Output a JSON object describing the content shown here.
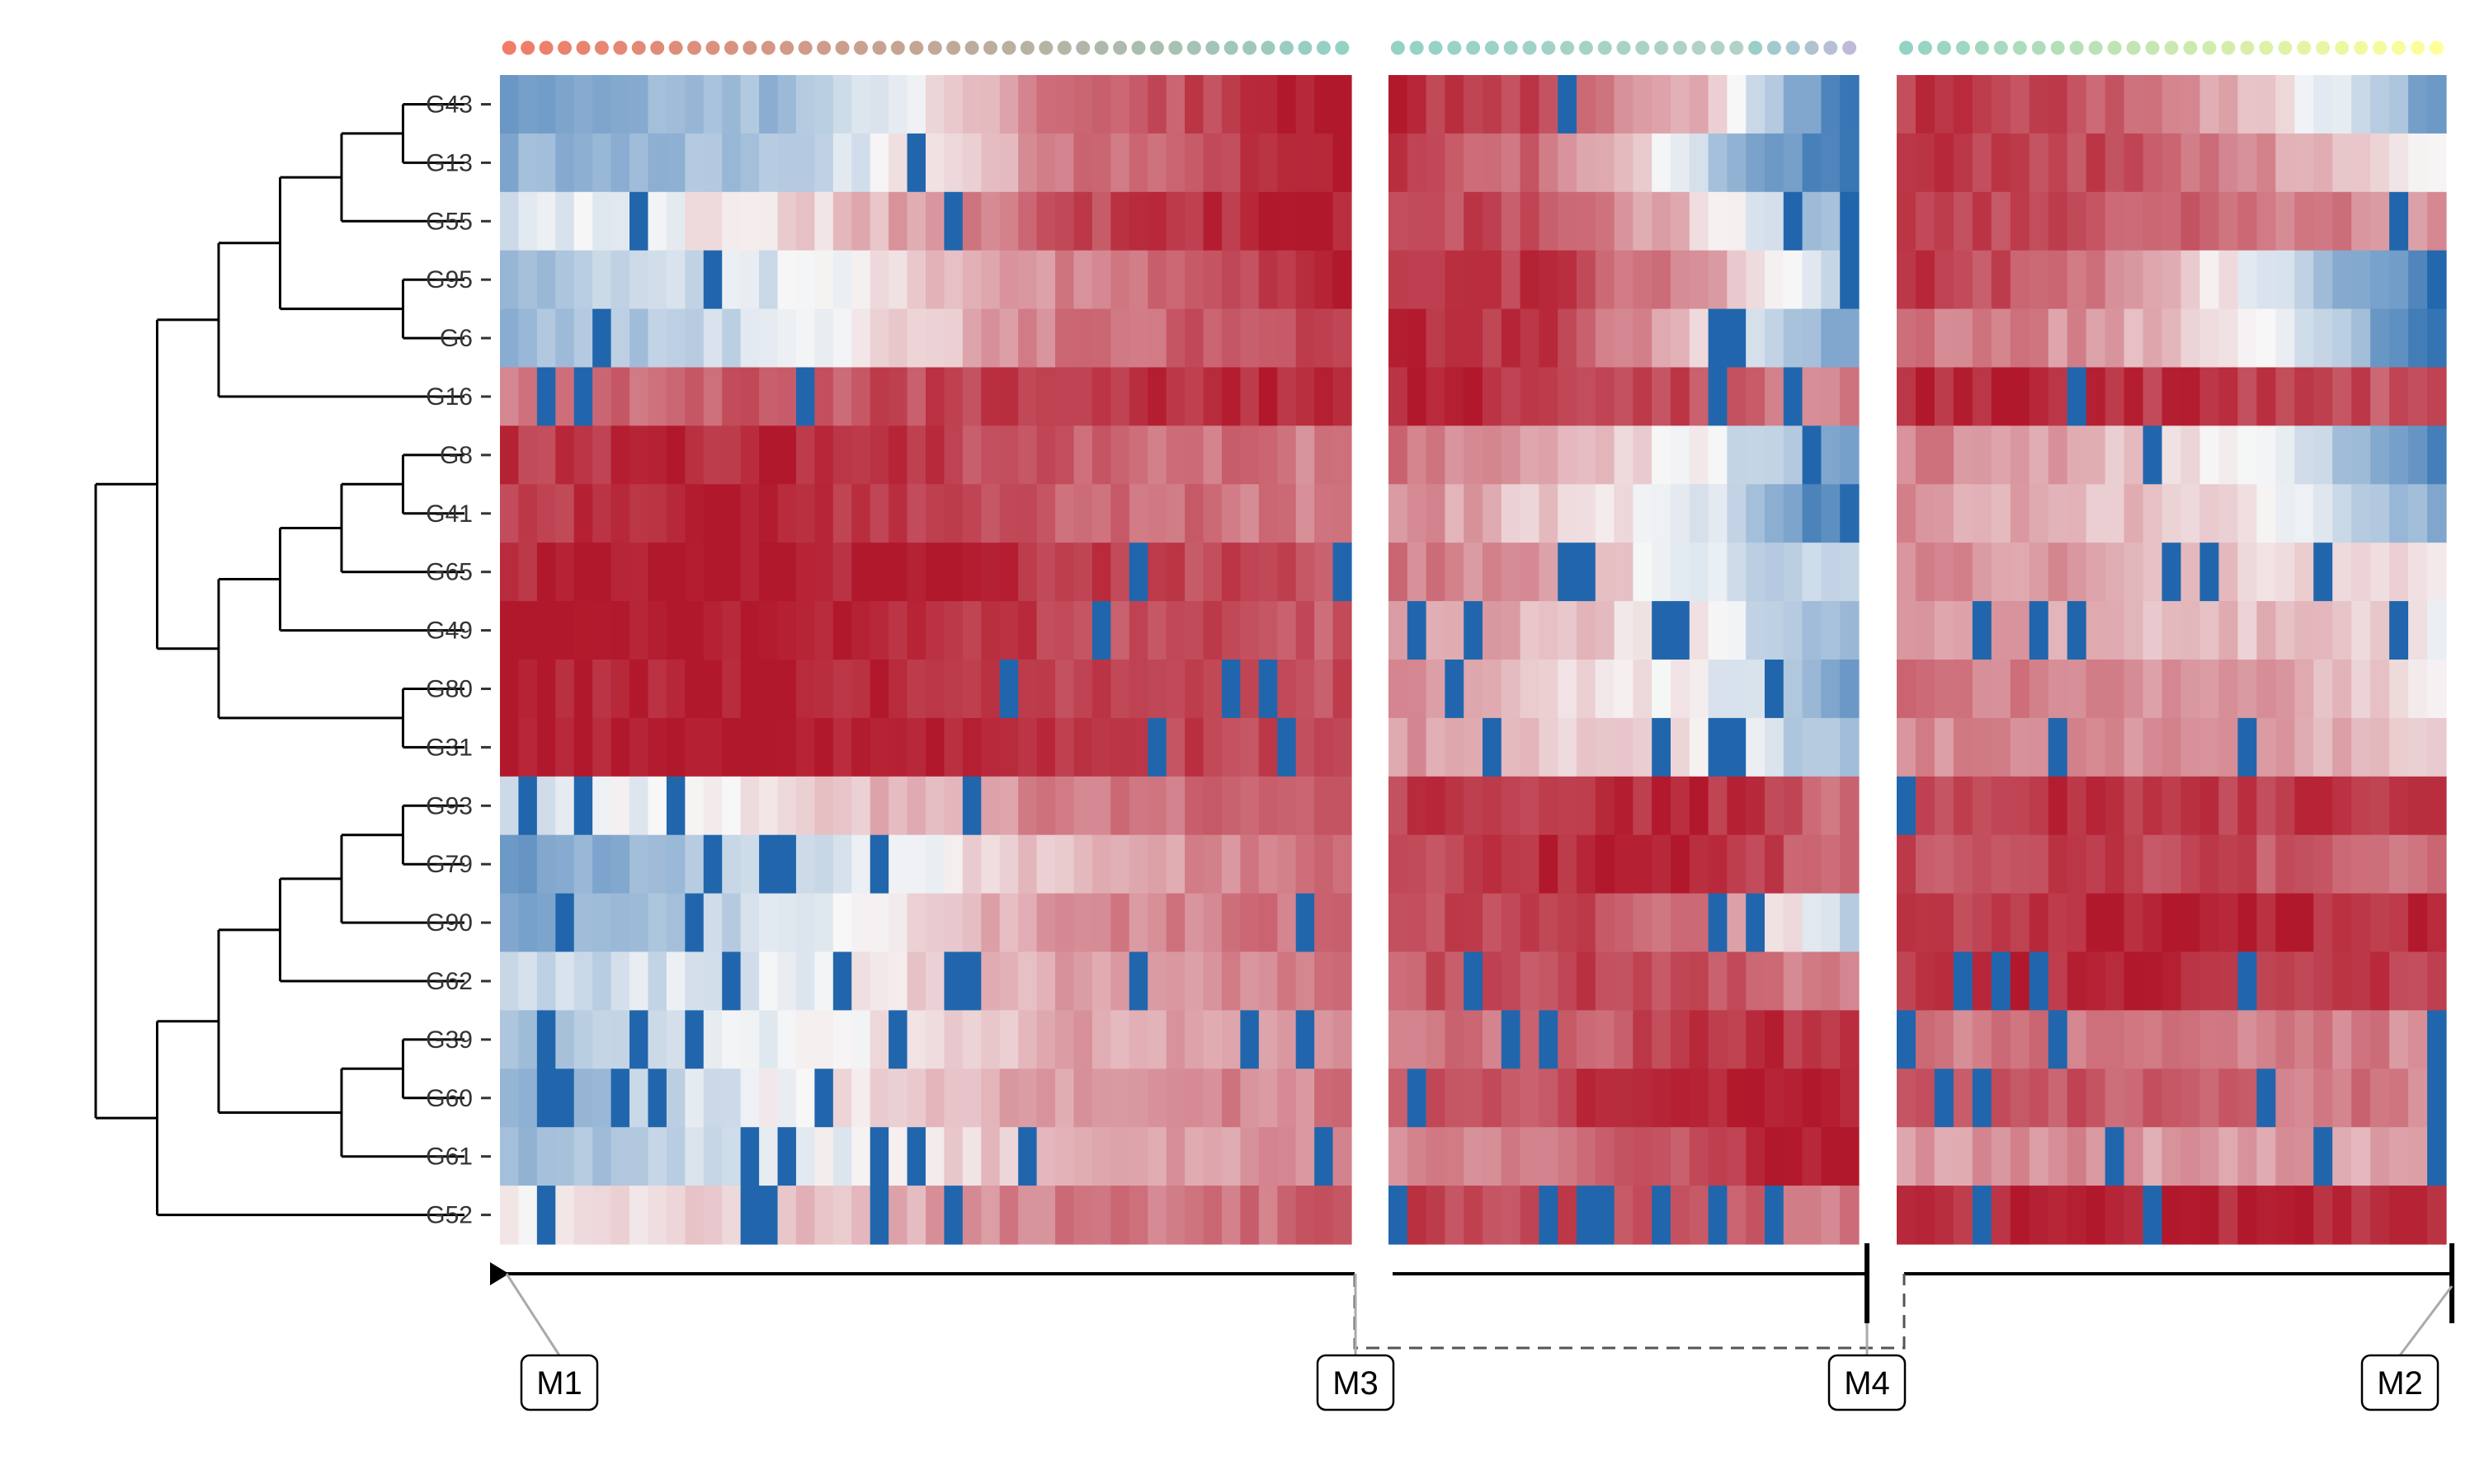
{
  "chart_data": {
    "type": "heatmap",
    "title": "",
    "xlabel": "",
    "ylabel": "",
    "rows": [
      "G43",
      "G13",
      "G55",
      "G95",
      "G6",
      "G16",
      "G8",
      "G41",
      "G65",
      "G49",
      "G80",
      "G31",
      "G93",
      "G79",
      "G90",
      "G62",
      "G39",
      "G60",
      "G61",
      "G52"
    ],
    "dendrogram_merges": [
      {
        "a": "G43",
        "b": "G13",
        "id": "c0"
      },
      {
        "a": "c0",
        "b": "G55",
        "id": "c1"
      },
      {
        "a": "G95",
        "b": "G6",
        "id": "c2"
      },
      {
        "a": "c1",
        "b": "c2",
        "id": "c3"
      },
      {
        "a": "c3",
        "b": "G16",
        "id": "c4"
      },
      {
        "a": "G8",
        "b": "G41",
        "id": "c5"
      },
      {
        "a": "c5",
        "b": "G65",
        "id": "c6"
      },
      {
        "a": "c6",
        "b": "G49",
        "id": "c7"
      },
      {
        "a": "G80",
        "b": "G31",
        "id": "c8"
      },
      {
        "a": "c7",
        "b": "c8",
        "id": "c9"
      },
      {
        "a": "c4",
        "b": "c9",
        "id": "c10"
      },
      {
        "a": "G93",
        "b": "G79",
        "id": "c11"
      },
      {
        "a": "c11",
        "b": "G90",
        "id": "c12"
      },
      {
        "a": "c12",
        "b": "G62",
        "id": "c13"
      },
      {
        "a": "G39",
        "b": "G60",
        "id": "c14"
      },
      {
        "a": "c14",
        "b": "G61",
        "id": "c15"
      },
      {
        "a": "c13",
        "b": "c15",
        "id": "c16"
      },
      {
        "a": "c16",
        "b": "G52",
        "id": "c17"
      },
      {
        "a": "c10",
        "b": "c17",
        "id": "c18"
      }
    ],
    "color_scale": {
      "low": "#2166ac",
      "mid": "#f7f7f7",
      "high": "#b2182b",
      "range": [
        -1,
        1
      ]
    },
    "column_annotation_colors": {
      "start": "#f17c67",
      "middle": "#94d2c6",
      "end": "#ffff99",
      "alt": "#bdbbd7"
    },
    "column_blocks": [
      {
        "name": "M1-M3",
        "columns": 46,
        "annotation": {
          "from": "#f17c67",
          "to": "#94d2c6"
        },
        "row_profiles": [
          [
            -0.55,
            -0.4,
            0.6,
            1.0
          ],
          [
            -0.5,
            -0.35,
            0.55,
            0.95
          ],
          [
            -0.1,
            0.1,
            0.75,
            1.0
          ],
          [
            -0.4,
            -0.1,
            0.5,
            0.95
          ],
          [
            -0.45,
            -0.15,
            0.55,
            0.85
          ],
          [
            0.6,
            0.7,
            0.85,
            0.95
          ],
          [
            0.85,
            0.95,
            0.7,
            0.5
          ],
          [
            0.85,
            0.95,
            0.7,
            0.5
          ],
          [
            0.95,
            1.0,
            0.85,
            0.75
          ],
          [
            0.95,
            1.0,
            0.8,
            0.7
          ],
          [
            0.95,
            1.0,
            0.85,
            0.75
          ],
          [
            0.95,
            1.0,
            0.85,
            0.75
          ],
          [
            -0.2,
            0.15,
            0.55,
            0.7
          ],
          [
            -0.6,
            -0.25,
            0.3,
            0.65
          ],
          [
            -0.55,
            -0.15,
            0.45,
            0.65
          ],
          [
            -0.25,
            -0.05,
            0.4,
            0.6
          ],
          [
            -0.45,
            -0.05,
            0.35,
            0.5
          ],
          [
            -0.5,
            0.0,
            0.4,
            0.55
          ],
          [
            -0.45,
            -0.1,
            0.3,
            0.45
          ],
          [
            0.0,
            0.2,
            0.55,
            0.65
          ]
        ]
      },
      {
        "name": "M3-M4",
        "columns": 25,
        "annotation": {
          "from": "#94d2c6",
          "to": "#bdbbd7"
        },
        "row_profiles": [
          [
            0.9,
            0.75,
            0.3,
            -0.9
          ],
          [
            0.85,
            0.6,
            -0.2,
            -0.95
          ],
          [
            0.85,
            0.7,
            0.2,
            -0.5
          ],
          [
            0.85,
            0.85,
            0.4,
            -0.2
          ],
          [
            0.9,
            0.85,
            0.2,
            -0.55
          ],
          [
            0.95,
            0.9,
            0.75,
            0.5
          ],
          [
            0.6,
            0.3,
            0.0,
            -0.6
          ],
          [
            0.5,
            0.2,
            -0.1,
            -0.9
          ],
          [
            0.55,
            0.4,
            -0.1,
            -0.3
          ],
          [
            0.45,
            0.3,
            0.0,
            -0.5
          ],
          [
            0.45,
            0.15,
            0.0,
            -0.6
          ],
          [
            0.45,
            0.15,
            0.1,
            -0.45
          ],
          [
            0.8,
            0.9,
            0.95,
            0.6
          ],
          [
            0.75,
            0.9,
            0.95,
            0.6
          ],
          [
            0.75,
            0.8,
            0.6,
            -0.2
          ],
          [
            0.7,
            0.8,
            0.75,
            0.5
          ],
          [
            0.55,
            0.65,
            0.85,
            0.95
          ],
          [
            0.65,
            0.8,
            0.95,
            1.0
          ],
          [
            0.45,
            0.55,
            0.8,
            1.0
          ],
          [
            0.85,
            0.8,
            0.8,
            0.55
          ]
        ]
      },
      {
        "name": "M4-M2",
        "columns": 29,
        "annotation": {
          "from": "#94d2c6",
          "to": "#ffff99"
        },
        "row_profiles": [
          [
            0.85,
            0.75,
            0.3,
            -0.6
          ],
          [
            0.85,
            0.8,
            0.45,
            0.0
          ],
          [
            0.9,
            0.75,
            0.6,
            0.4
          ],
          [
            0.9,
            0.6,
            -0.1,
            -0.9
          ],
          [
            0.6,
            0.45,
            0.1,
            -0.95
          ],
          [
            0.95,
            0.9,
            0.85,
            0.7
          ],
          [
            0.55,
            0.35,
            0.0,
            -0.85
          ],
          [
            0.45,
            0.3,
            0.1,
            -0.55
          ],
          [
            0.5,
            0.4,
            0.2,
            0.1
          ],
          [
            0.45,
            0.35,
            0.25,
            0.05
          ],
          [
            0.55,
            0.5,
            0.45,
            0.1
          ],
          [
            0.5,
            0.45,
            0.4,
            0.2
          ],
          [
            0.8,
            0.9,
            0.85,
            0.9
          ],
          [
            0.75,
            0.8,
            0.75,
            0.6
          ],
          [
            0.8,
            0.95,
            0.95,
            0.9
          ],
          [
            0.85,
            0.95,
            0.9,
            0.85
          ],
          [
            0.55,
            0.6,
            0.55,
            0.5
          ],
          [
            0.65,
            0.7,
            0.6,
            0.55
          ],
          [
            0.4,
            0.45,
            0.4,
            0.35
          ],
          [
            0.85,
            0.95,
            0.95,
            0.9
          ]
        ]
      }
    ],
    "blue_markers": [
      {
        "block": 0,
        "row": 1,
        "cols": [
          22
        ]
      },
      {
        "block": 0,
        "row": 2,
        "cols": [
          7,
          24
        ]
      },
      {
        "block": 0,
        "row": 3,
        "cols": [
          11
        ]
      },
      {
        "block": 0,
        "row": 4,
        "cols": [
          5
        ]
      },
      {
        "block": 0,
        "row": 5,
        "cols": [
          2,
          4,
          16
        ]
      },
      {
        "block": 0,
        "row": 8,
        "cols": [
          34,
          45
        ]
      },
      {
        "block": 0,
        "row": 9,
        "cols": [
          32
        ]
      },
      {
        "block": 0,
        "row": 10,
        "cols": [
          27,
          39,
          41
        ]
      },
      {
        "block": 0,
        "row": 11,
        "cols": [
          35,
          42
        ]
      },
      {
        "block": 0,
        "row": 12,
        "cols": [
          1,
          4,
          9,
          25
        ]
      },
      {
        "block": 0,
        "row": 13,
        "cols": [
          11,
          14,
          15,
          20
        ]
      },
      {
        "block": 0,
        "row": 14,
        "cols": [
          3,
          10,
          43
        ]
      },
      {
        "block": 0,
        "row": 15,
        "cols": [
          12,
          18,
          24,
          25,
          34
        ]
      },
      {
        "block": 0,
        "row": 16,
        "cols": [
          2,
          7,
          10,
          21,
          40,
          43
        ]
      },
      {
        "block": 0,
        "row": 17,
        "cols": [
          2,
          3,
          6,
          8,
          17
        ]
      },
      {
        "block": 0,
        "row": 18,
        "cols": [
          13,
          15,
          20,
          22,
          28,
          44
        ]
      },
      {
        "block": 0,
        "row": 19,
        "cols": [
          2,
          13,
          14,
          20,
          24
        ]
      },
      {
        "block": 1,
        "row": 0,
        "cols": [
          9
        ]
      },
      {
        "block": 1,
        "row": 2,
        "cols": [
          21,
          24
        ]
      },
      {
        "block": 1,
        "row": 3,
        "cols": [
          24
        ]
      },
      {
        "block": 1,
        "row": 4,
        "cols": [
          17,
          18
        ]
      },
      {
        "block": 1,
        "row": 5,
        "cols": [
          17,
          21
        ]
      },
      {
        "block": 1,
        "row": 6,
        "cols": [
          22
        ]
      },
      {
        "block": 1,
        "row": 8,
        "cols": [
          9,
          10
        ]
      },
      {
        "block": 1,
        "row": 9,
        "cols": [
          1,
          4,
          14,
          15
        ]
      },
      {
        "block": 1,
        "row": 10,
        "cols": [
          3,
          20
        ]
      },
      {
        "block": 1,
        "row": 11,
        "cols": [
          5,
          14,
          17,
          18
        ]
      },
      {
        "block": 1,
        "row": 14,
        "cols": [
          17,
          19
        ]
      },
      {
        "block": 1,
        "row": 15,
        "cols": [
          4
        ]
      },
      {
        "block": 1,
        "row": 16,
        "cols": [
          6,
          8
        ]
      },
      {
        "block": 1,
        "row": 17,
        "cols": [
          1
        ]
      },
      {
        "block": 1,
        "row": 19,
        "cols": [
          0,
          8,
          10,
          11,
          14,
          17,
          20
        ]
      },
      {
        "block": 2,
        "row": 2,
        "cols": [
          26
        ]
      },
      {
        "block": 2,
        "row": 5,
        "cols": [
          9
        ]
      },
      {
        "block": 2,
        "row": 6,
        "cols": [
          13
        ]
      },
      {
        "block": 2,
        "row": 8,
        "cols": [
          14,
          16,
          22
        ]
      },
      {
        "block": 2,
        "row": 9,
        "cols": [
          4,
          7,
          9,
          26
        ]
      },
      {
        "block": 2,
        "row": 11,
        "cols": [
          8,
          18
        ]
      },
      {
        "block": 2,
        "row": 12,
        "cols": [
          0
        ]
      },
      {
        "block": 2,
        "row": 15,
        "cols": [
          3,
          5,
          7,
          18
        ]
      },
      {
        "block": 2,
        "row": 16,
        "cols": [
          0,
          8,
          28
        ]
      },
      {
        "block": 2,
        "row": 17,
        "cols": [
          2,
          4,
          19,
          28
        ]
      },
      {
        "block": 2,
        "row": 18,
        "cols": [
          11,
          22,
          28
        ]
      },
      {
        "block": 2,
        "row": 19,
        "cols": [
          4,
          13
        ]
      }
    ],
    "markers": [
      {
        "label": "M1",
        "end": "triangle"
      },
      {
        "label": "M3",
        "end": "none"
      },
      {
        "label": "M4",
        "end": "bar"
      },
      {
        "label": "M2",
        "end": "bar"
      }
    ]
  }
}
